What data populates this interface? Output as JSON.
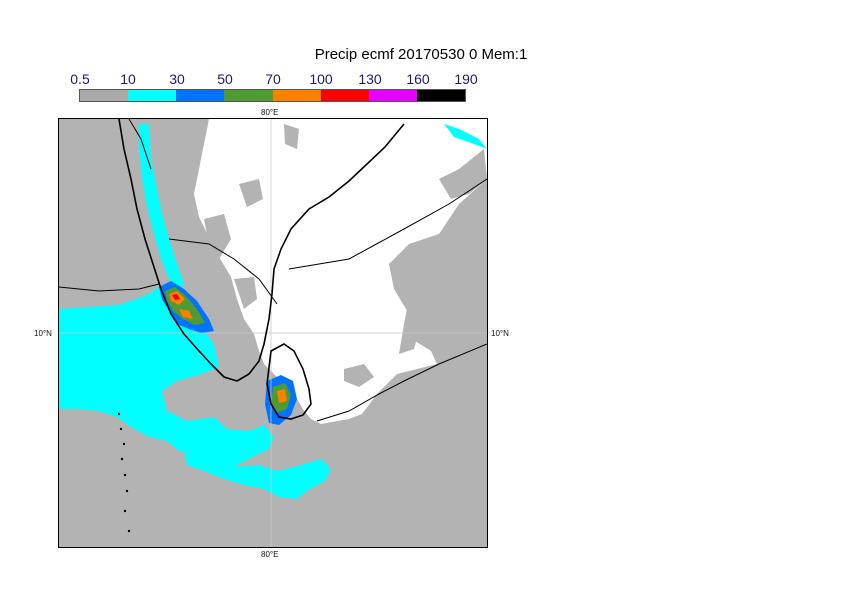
{
  "title": "Precip ecmf 20170530 0 Mem:1",
  "legend": {
    "labels": [
      "0.5",
      "10",
      "30",
      "50",
      "70",
      "100",
      "130",
      "160",
      "190"
    ],
    "colors": [
      "#a9a9a9",
      "#00ffff",
      "#0073ff",
      "#4f9a33",
      "#ff8000",
      "#ff0000",
      "#e600ff",
      "#000000"
    ]
  },
  "axis_labels": {
    "top_lon": "80°E",
    "bottom_lon": "80°E",
    "left_lat": "10°N",
    "right_lat": "10°N"
  },
  "map_colors": {
    "ocean_shade": "#b3b3b3",
    "land": "#ffffff",
    "light_precip": "#00ffff",
    "coast": "#000000",
    "grid": "#c8c8c8"
  }
}
